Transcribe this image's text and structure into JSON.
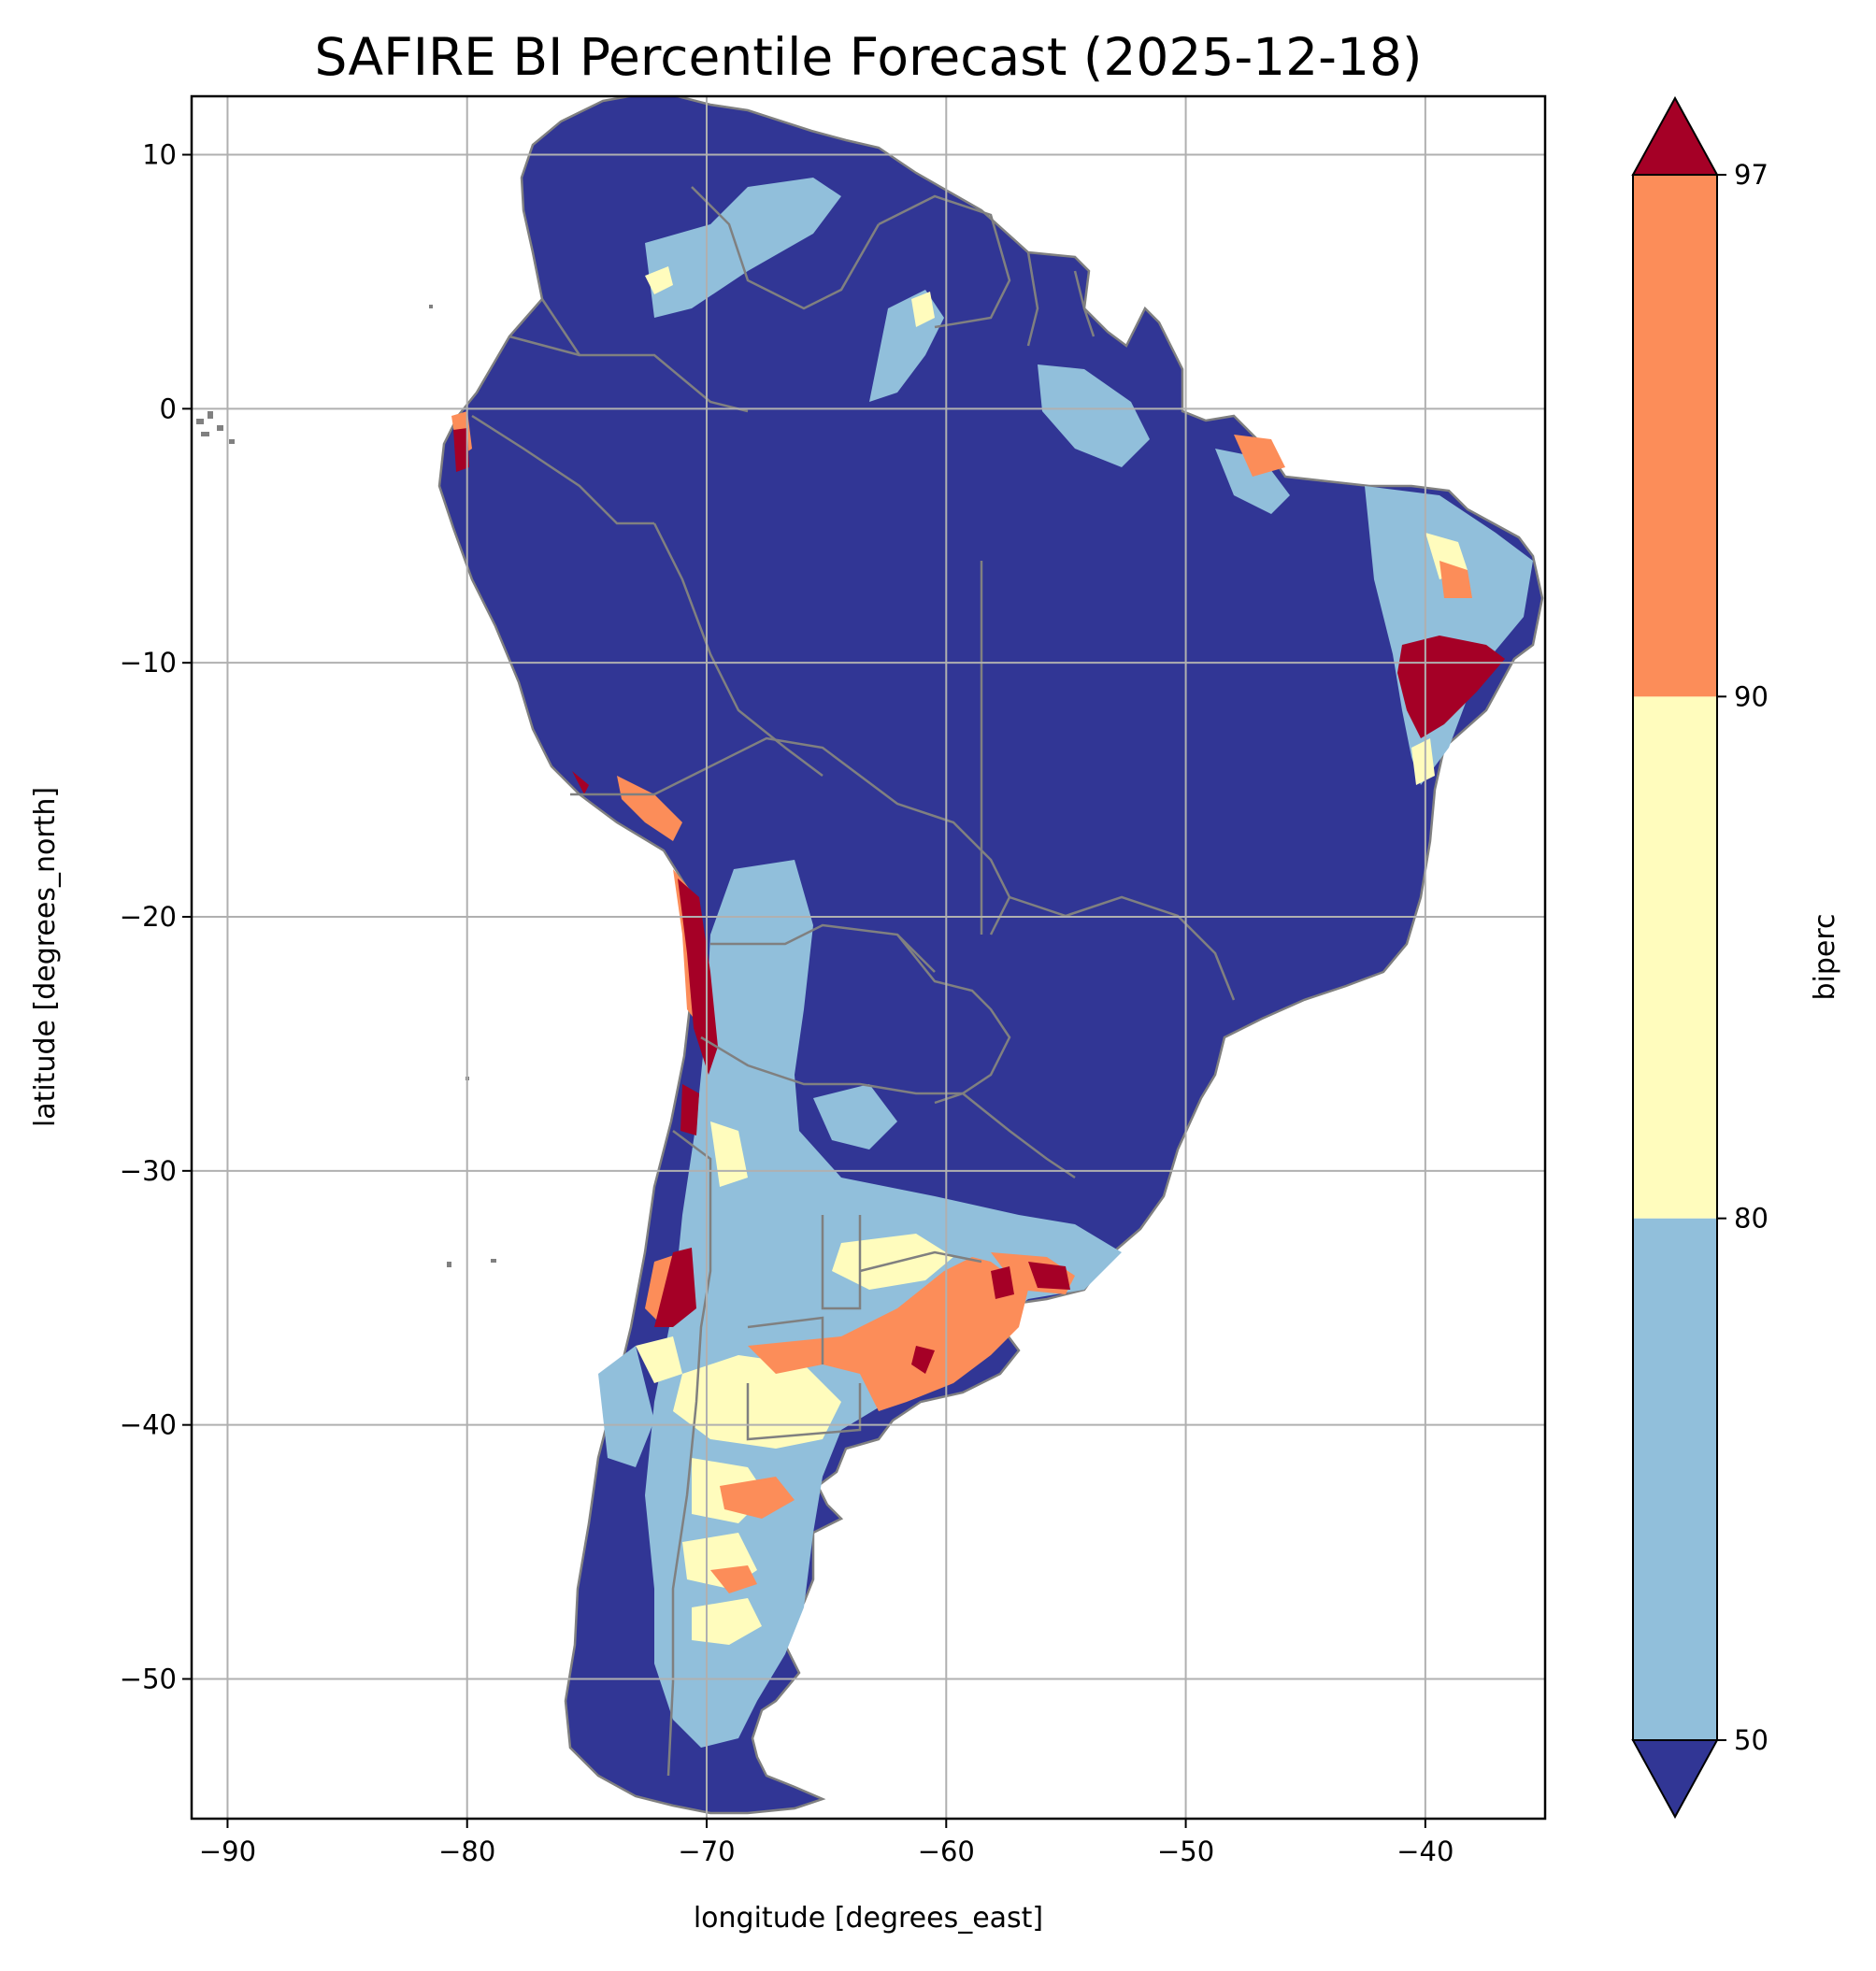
{
  "title": "SAFIRE BI Percentile Forecast (2025-12-18)",
  "map": {
    "xlabel": "longitude [degrees_east]",
    "ylabel": "latitude [degrees_north]",
    "xlim": [
      -91.5,
      -35
    ],
    "ylim": [
      -55.5,
      12.3
    ],
    "xticks": [
      {
        "value": -90,
        "label": "−90"
      },
      {
        "value": -80,
        "label": "−80"
      },
      {
        "value": -70,
        "label": "−70"
      },
      {
        "value": -60,
        "label": "−60"
      },
      {
        "value": -50,
        "label": "−50"
      },
      {
        "value": -40,
        "label": "−40"
      }
    ],
    "yticks": [
      {
        "value": 10,
        "label": "10"
      },
      {
        "value": 0,
        "label": "0"
      },
      {
        "value": -10,
        "label": "−10"
      },
      {
        "value": -20,
        "label": "−20"
      },
      {
        "value": -30,
        "label": "−30"
      },
      {
        "value": -40,
        "label": "−40"
      },
      {
        "value": -50,
        "label": "−50"
      }
    ],
    "grid": true,
    "colors": {
      "below_50": "#313695",
      "50_80": "#91bfdb",
      "80_90": "#fffcbd",
      "90_97": "#fc8d59",
      "above_97": "#a50026",
      "borders": "#808080",
      "grid": "#b0b0b0"
    }
  },
  "colorbar": {
    "label": "biperc",
    "ticks": [
      "50",
      "80",
      "90",
      "97"
    ],
    "bands": [
      {
        "from": 50,
        "to": 80,
        "color": "#91bfdb"
      },
      {
        "from": 80,
        "to": 90,
        "color": "#fffcbd"
      },
      {
        "from": 90,
        "to": 97,
        "color": "#fc8d59"
      }
    ],
    "extend_low_color": "#313695",
    "extend_high_color": "#a50026"
  }
}
